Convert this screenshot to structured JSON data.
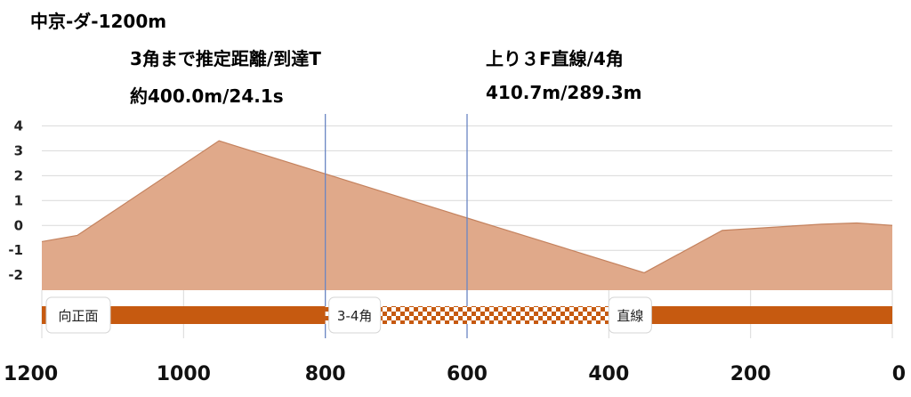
{
  "title": "中京-ダ-1200m",
  "corner_info": {
    "header": "3角まで推定距離/到達T",
    "value": "約400.0m/24.1s"
  },
  "straight_info": {
    "header": "上り３F直線/4角",
    "value": "410.7m/289.3m"
  },
  "chart_data": {
    "type": "area",
    "xlabel": "",
    "ylabel": "",
    "xlim": [
      1200,
      0
    ],
    "ylim": [
      -2.6,
      4.3
    ],
    "x_ticks": [
      1200,
      1000,
      800,
      600,
      400,
      200,
      0
    ],
    "y_ticks": [
      4,
      3,
      2,
      1,
      0,
      -1,
      -2
    ],
    "grid": true,
    "x": [
      1200,
      1150,
      950,
      600,
      350,
      240,
      100,
      50,
      0
    ],
    "y": [
      -0.65,
      -0.4,
      3.4,
      0.3,
      -1.9,
      -0.2,
      0.05,
      0.1,
      0.0
    ],
    "fill_color": "#e0a98a",
    "line_color": "#c4825e",
    "vertical_markers": [
      {
        "x": 800,
        "color": "#6a86c4"
      },
      {
        "x": 600,
        "color": "#6a86c4"
      }
    ],
    "segments": [
      {
        "label": "向正面",
        "from": 1200,
        "to": 800,
        "pattern": "solid"
      },
      {
        "label": "3-4角",
        "from": 800,
        "to": 400,
        "pattern": "checker"
      },
      {
        "label": "直線",
        "from": 400,
        "to": 0,
        "pattern": "solid"
      }
    ],
    "segment_color": "#c65a10"
  }
}
